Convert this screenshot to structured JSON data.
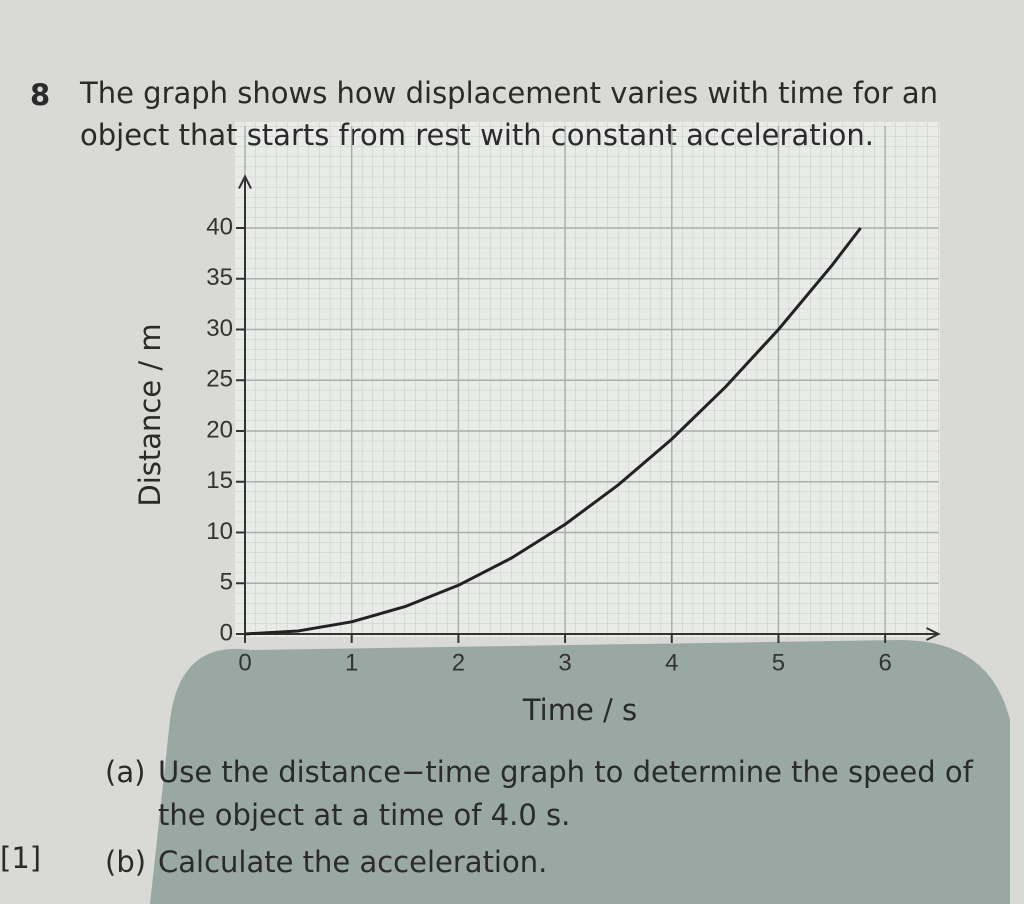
{
  "question": {
    "number": "8",
    "lines": [
      "The graph shows how displacement varies with time for an",
      "object that starts from rest with constant acceleration."
    ]
  },
  "chart_data": {
    "type": "line",
    "x_label": "Time / s",
    "y_label": "Distance / m",
    "x": [
      0,
      0.5,
      1,
      1.5,
      2,
      2.5,
      3,
      3.5,
      4,
      4.5,
      5,
      5.5,
      5.77
    ],
    "series": [
      {
        "color": "#222222",
        "values": [
          0,
          0.3,
          1.2,
          2.7,
          4.8,
          7.5,
          10.8,
          14.7,
          19.2,
          24.3,
          30,
          36.3,
          40
        ]
      }
    ],
    "xlim": [
      0,
      6.5
    ],
    "xticks": [
      0,
      1,
      2,
      3,
      4,
      5,
      6
    ],
    "ylim": [
      0,
      50
    ],
    "yticks": [
      0,
      5,
      10,
      15,
      20,
      25,
      30,
      35,
      40
    ],
    "grid": true
  },
  "parts": [
    {
      "label": "(a)",
      "lines": [
        "Use the distance−time graph to determine the speed of",
        "the object at a time of 4.0 s."
      ]
    },
    {
      "label": "(b)",
      "lines": [
        "Calculate the acceleration."
      ]
    }
  ],
  "margin_mark": "[1]"
}
